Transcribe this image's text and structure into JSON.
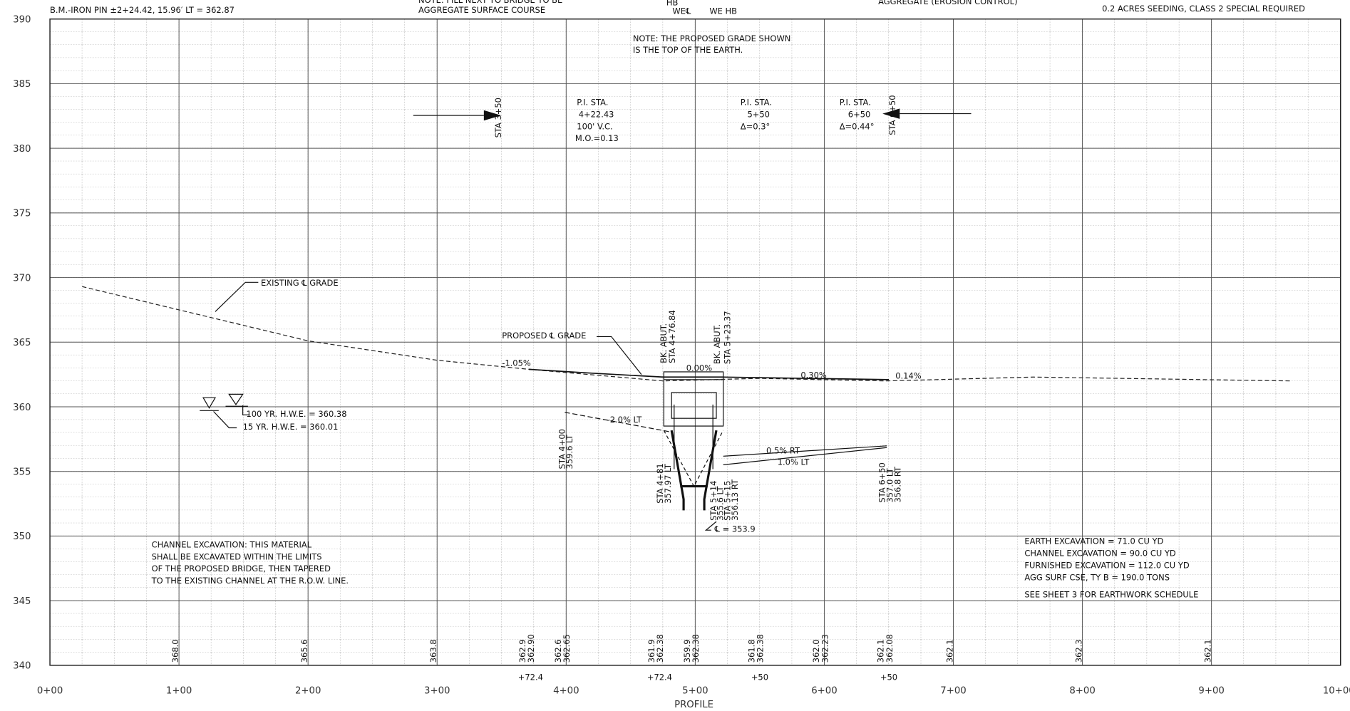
{
  "chart_data": {
    "type": "line",
    "xlabel": "PROFILE",
    "xlim": [
      0,
      1000
    ],
    "ylim": [
      340,
      390
    ],
    "yticks": [
      340,
      345,
      350,
      355,
      360,
      365,
      370,
      375,
      380,
      385,
      390
    ],
    "xticks": [
      {
        "value": 0,
        "label": "0+00"
      },
      {
        "value": 100,
        "label": "1+00"
      },
      {
        "value": 200,
        "label": "2+00"
      },
      {
        "value": 300,
        "label": "3+00"
      },
      {
        "value": 400,
        "label": "4+00"
      },
      {
        "value": 500,
        "label": "5+00"
      },
      {
        "value": 600,
        "label": "6+00"
      },
      {
        "value": 700,
        "label": "7+00"
      },
      {
        "value": 800,
        "label": "8+00"
      },
      {
        "value": 900,
        "label": "9+00"
      },
      {
        "value": 1000,
        "label": "10+00"
      }
    ],
    "extra_xlabels": [
      {
        "value": 372.4,
        "label": "+72.4"
      },
      {
        "value": 472.4,
        "label": "+72.4"
      },
      {
        "value": 550,
        "label": "+50"
      },
      {
        "value": 650,
        "label": "+50"
      }
    ],
    "grid": true,
    "series": [
      {
        "name": "EXISTING ℄ GRADE",
        "color": "#222",
        "dash": true,
        "x": [
          25,
          100,
          200,
          300,
          371,
          475,
          550,
          648,
          762,
          962
        ],
        "values": [
          369.3,
          367.5,
          365.1,
          363.6,
          362.9,
          362.0,
          362.2,
          362.0,
          362.3,
          362.0
        ]
      },
      {
        "name": "PROPOSED ℄ GRADE",
        "color": "#111",
        "dash": false,
        "x": [
          371,
          420,
          475,
          521,
          650
        ],
        "values": [
          362.9,
          362.6,
          362.3,
          362.3,
          362.1
        ]
      }
    ],
    "elevations": [
      {
        "station": 100,
        "labels": [
          "368.0"
        ]
      },
      {
        "station": 200,
        "labels": [
          "365.6"
        ]
      },
      {
        "station": 300,
        "labels": [
          "363.8"
        ]
      },
      {
        "station": 372.4,
        "labels": [
          "362.9",
          "362.90"
        ]
      },
      {
        "station": 400,
        "labels": [
          "362.6",
          "362.65"
        ]
      },
      {
        "station": 472.4,
        "labels": [
          "361.9",
          "362.38"
        ]
      },
      {
        "station": 500,
        "labels": [
          "359.9",
          "362.38"
        ]
      },
      {
        "station": 550,
        "labels": [
          "361.8",
          "362.38"
        ]
      },
      {
        "station": 600,
        "labels": [
          "362.0",
          "362.23"
        ]
      },
      {
        "station": 650,
        "labels": [
          "362.1",
          "362.08"
        ]
      },
      {
        "station": 700,
        "labels": [
          "362.1"
        ]
      },
      {
        "station": 800,
        "labels": [
          "362.3"
        ]
      },
      {
        "station": 900,
        "labels": [
          "362.1"
        ]
      }
    ],
    "annotations": [
      "B.M.-IRON PIN ±2+24.42, 15.96′ LT = 362.87",
      "NOTE: FILL NEXT TO BRIDGE TO BE",
      "AGGREGATE SURFACE COURSE",
      "HB",
      "WE℄",
      "WE  HB",
      "AGGREGATE (EROSION CONTROL)",
      "0.2 ACRES SEEDING, CLASS 2 SPECIAL REQUIRED",
      "NOTE: THE PROPOSED GRADE SHOWN",
      "IS THE TOP OF THE EARTH.",
      "STA 3+50",
      "STA 6+50",
      "P.I. STA.",
      "4+22.43",
      "100' V.C.",
      "M.O.=0.13",
      "P.I. STA.",
      "5+50",
      "Δ=0.3°",
      "P.I. STA.",
      "6+50",
      "Δ=0.44°",
      "EXISTING ℄ GRADE",
      "PROPOSED ℄ GRADE",
      "-1.05%",
      "0.00%",
      "0.30%",
      "0.14%",
      "-2.0% LT",
      "0.5% RT",
      "1.0% LT",
      "BK. ABUT.",
      "STA 4+76.84",
      "BK. ABUT.",
      "STA 5+23.37",
      "100 YR. H.W.E. = 360.38",
      "15 YR. H.W.E. = 360.01",
      "STA 4+00",
      "359.6 LT",
      "STA 4+81",
      "357.97 LT",
      "STA 5+14",
      "355.6 LT",
      "STA 5+15",
      "356.13 RT",
      "℄ = 353.9",
      "STA 6+50",
      "357.0 LT",
      "356.8 RT",
      "CHANNEL EXCAVATION: THIS MATERIAL",
      "SHALL BE EXCAVATED WITHIN THE LIMITS",
      "OF THE PROPOSED BRIDGE, THEN TAPERED",
      "TO THE EXISTING CHANNEL AT THE R.O.W. LINE.",
      "EARTH EXCAVATION      = 71.0  CU YD",
      "CHANNEL EXCAVATION   = 90.0  CU YD",
      "FURNISHED EXCAVATION = 112.0 CU YD",
      "AGG SURF CSE, TY B    = 190.0 TONS",
      "SEE SHEET 3 FOR EARTHWORK SCHEDULE"
    ]
  }
}
